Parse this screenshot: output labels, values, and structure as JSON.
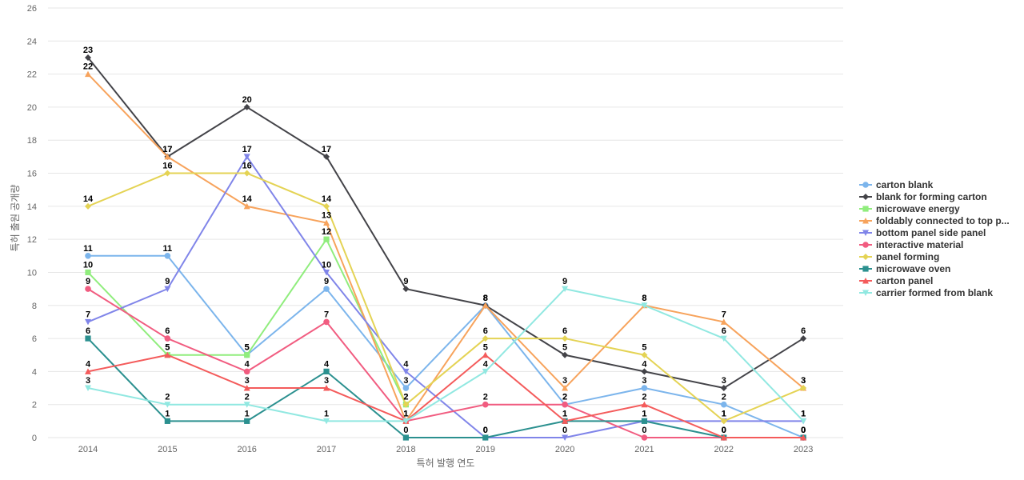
{
  "chart_data": {
    "type": "line",
    "title": "",
    "xlabel": "특허 발행 연도",
    "ylabel": "특허 출원 공개량",
    "ylim": [
      0,
      26
    ],
    "yticks": [
      0,
      2,
      4,
      6,
      8,
      10,
      12,
      14,
      16,
      18,
      20,
      22,
      24,
      26
    ],
    "categories": [
      "2014",
      "2015",
      "2016",
      "2017",
      "2018",
      "2019",
      "2020",
      "2021",
      "2022",
      "2023"
    ],
    "legend_position": "right",
    "series": [
      {
        "name": "carton blank",
        "color": "#7cb5ec",
        "marker": "circle",
        "values": [
          11,
          11,
          5,
          9,
          3,
          8,
          2,
          3,
          2,
          0
        ]
      },
      {
        "name": "blank for forming carton",
        "color": "#434348",
        "marker": "diamond",
        "values": [
          23,
          17,
          20,
          17,
          9,
          8,
          5,
          4,
          3,
          6
        ]
      },
      {
        "name": "microwave energy",
        "color": "#90ed7d",
        "marker": "square",
        "values": [
          10,
          5,
          5,
          12,
          2,
          null,
          null,
          null,
          null,
          null
        ]
      },
      {
        "name": "foldably connected to top p...",
        "color": "#f7a35c",
        "marker": "triangle",
        "values": [
          22,
          17,
          14,
          13,
          1,
          8,
          3,
          8,
          7,
          3
        ]
      },
      {
        "name": "bottom panel side panel",
        "color": "#8085e9",
        "marker": "triangle-down",
        "values": [
          7,
          9,
          17,
          10,
          4,
          0,
          0,
          1,
          1,
          1
        ]
      },
      {
        "name": "interactive material",
        "color": "#f15c80",
        "marker": "circle",
        "values": [
          9,
          6,
          4,
          7,
          1,
          2,
          2,
          0,
          0,
          0
        ]
      },
      {
        "name": "panel forming",
        "color": "#e4d354",
        "marker": "diamond",
        "values": [
          14,
          16,
          16,
          14,
          2,
          6,
          6,
          5,
          1,
          3
        ]
      },
      {
        "name": "microwave oven",
        "color": "#2b908f",
        "marker": "square",
        "values": [
          6,
          1,
          1,
          4,
          0,
          0,
          1,
          1,
          0,
          0
        ]
      },
      {
        "name": "carton panel",
        "color": "#f45b5b",
        "marker": "triangle",
        "values": [
          4,
          5,
          3,
          3,
          1,
          5,
          1,
          2,
          0,
          0
        ]
      },
      {
        "name": "carrier formed from blank",
        "color": "#91e8e1",
        "marker": "triangle-down",
        "values": [
          3,
          2,
          2,
          1,
          1,
          4,
          9,
          8,
          6,
          1
        ]
      }
    ]
  }
}
